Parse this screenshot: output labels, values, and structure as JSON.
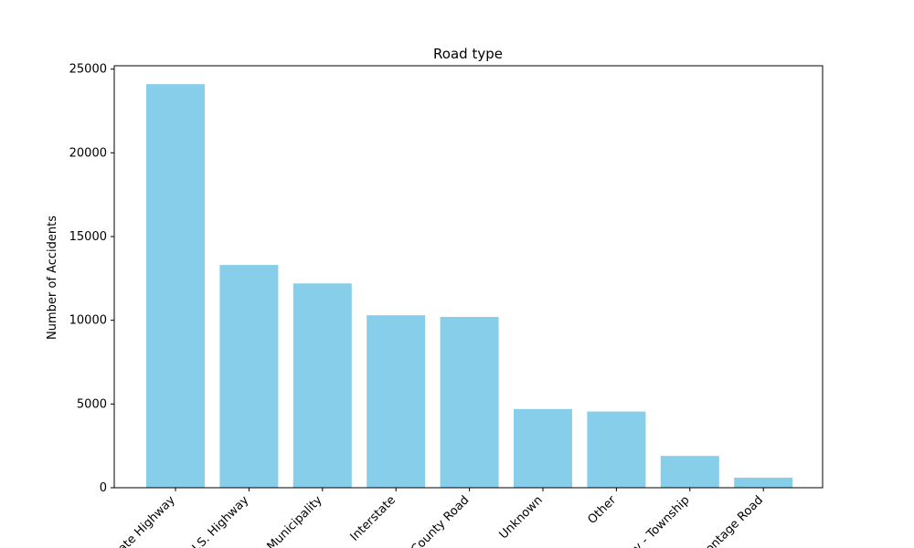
{
  "chart_data": {
    "type": "bar",
    "title": "Road type",
    "xlabel": "",
    "ylabel": "Number of Accidents",
    "categories": [
      "State Highway",
      "U.S. Highway",
      "Municipality",
      "Interstate",
      "County Road",
      "Unknown",
      "Other",
      "City - Township",
      "Frontage Road"
    ],
    "values": [
      24100,
      13300,
      12200,
      10300,
      10200,
      4700,
      4550,
      1900,
      600
    ],
    "ylim": [
      0,
      25200
    ],
    "yticks": [
      0,
      5000,
      10000,
      15000,
      20000,
      25000
    ],
    "grid": false,
    "bar_color": "#87ceeb"
  }
}
